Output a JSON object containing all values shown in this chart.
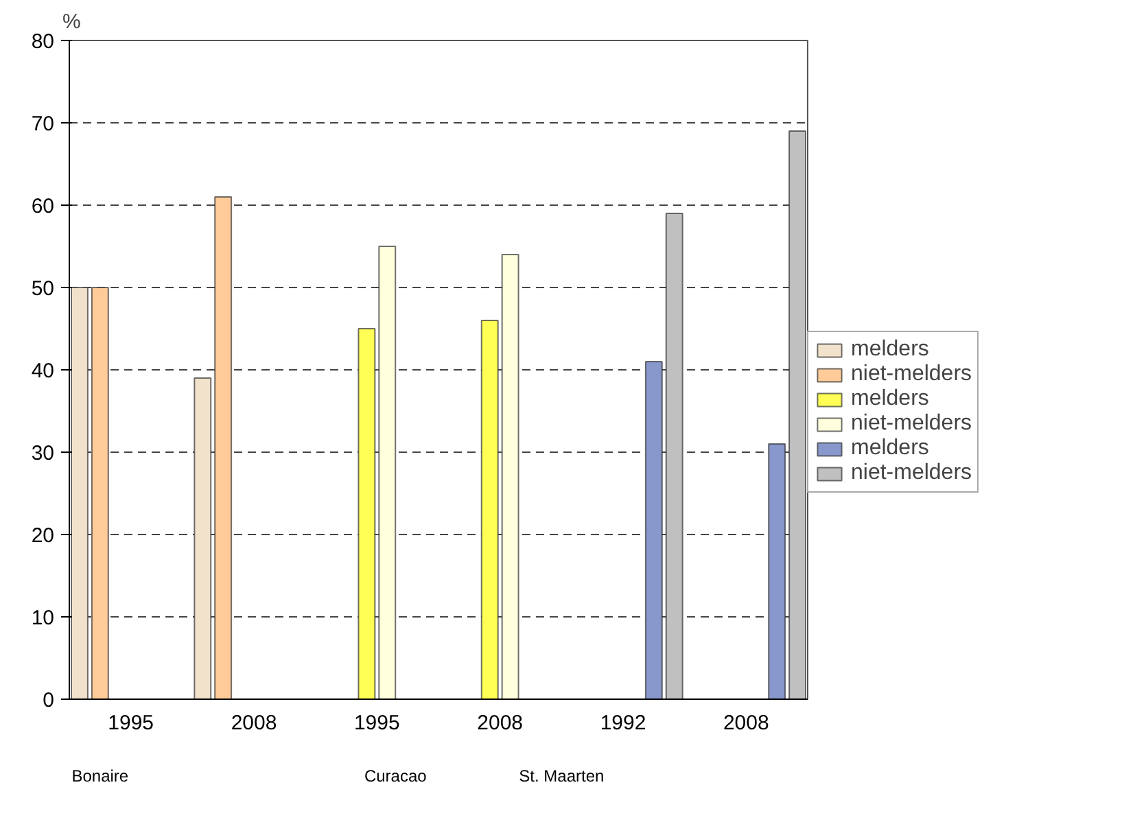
{
  "chart_data": {
    "type": "bar",
    "ylabel": "%",
    "categories": [
      "1995",
      "2008",
      "1995",
      "2008",
      "1992",
      "2008"
    ],
    "series": [
      {
        "name": "melders",
        "color": "#f2e2cc",
        "values": [
          50,
          39,
          null,
          null,
          null,
          null
        ]
      },
      {
        "name": "niet-melders",
        "color": "#ffcc99",
        "values": [
          50,
          61,
          null,
          null,
          null,
          null
        ]
      },
      {
        "name": "melders",
        "color": "#ffff55",
        "values": [
          null,
          null,
          45,
          46,
          null,
          null
        ]
      },
      {
        "name": "niet-melders",
        "color": "#ffffdd",
        "values": [
          null,
          null,
          55,
          54,
          null,
          null
        ]
      },
      {
        "name": "melders",
        "color": "#8898cc",
        "values": [
          null,
          null,
          null,
          null,
          41,
          31
        ]
      },
      {
        "name": "niet-melders",
        "color": "#c0c0c0",
        "values": [
          null,
          null,
          null,
          null,
          59,
          69
        ]
      }
    ],
    "ylim": [
      0,
      80
    ],
    "yticks": [
      0,
      10,
      20,
      30,
      40,
      50,
      60,
      70,
      80
    ],
    "grid": "y",
    "legend": "right",
    "annotations": [
      "Bonaire",
      "Curacao",
      "St. Maarten"
    ]
  }
}
